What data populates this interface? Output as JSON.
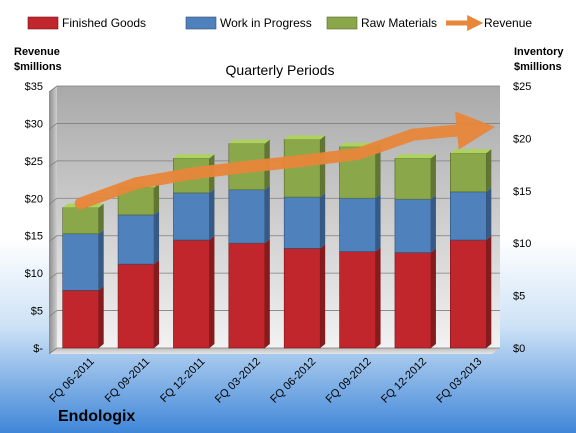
{
  "company": "Endologix",
  "chart_data": {
    "type": "bar",
    "stacked": true,
    "title": "Quarterly Periods",
    "categories": [
      "FQ 06-2011",
      "FQ 09-2011",
      "FQ 12-2011",
      "FQ 03-2012",
      "FQ 06-2012",
      "FQ 09-2012",
      "FQ 12-2012",
      "FQ 03-2013"
    ],
    "series": [
      {
        "name": "Finished Goods",
        "color": "#c0262b",
        "axis": "right",
        "values": [
          5.5,
          8.0,
          10.3,
          10.0,
          9.5,
          9.2,
          9.1,
          10.3
        ]
      },
      {
        "name": "Work in Progress",
        "color": "#4f81bd",
        "axis": "right",
        "values": [
          5.4,
          4.7,
          4.5,
          5.1,
          4.9,
          5.1,
          5.1,
          4.6
        ]
      },
      {
        "name": "Raw Materials",
        "color": "#8aa84a",
        "axis": "right",
        "values": [
          2.5,
          2.6,
          3.3,
          4.4,
          5.5,
          4.9,
          3.9,
          3.7
        ]
      },
      {
        "name": "Revenue",
        "color": "#e8863a",
        "type": "line",
        "axis": "left",
        "values": [
          19.3,
          22.0,
          23.3,
          24.2,
          25.0,
          25.9,
          28.5,
          29.2
        ]
      }
    ],
    "y_left": {
      "label": [
        "Revenue",
        "$millions"
      ],
      "range": [
        0,
        35
      ],
      "ticks": [
        "$-",
        "$5",
        "$10",
        "$15",
        "$20",
        "$25",
        "$30",
        "$35"
      ]
    },
    "y_right": {
      "label": [
        "Inventory",
        "$millions"
      ],
      "range": [
        0,
        25
      ],
      "ticks": [
        "$0",
        "$5",
        "$10",
        "$15",
        "$20",
        "$25"
      ]
    },
    "grid": true,
    "legend": "top"
  }
}
